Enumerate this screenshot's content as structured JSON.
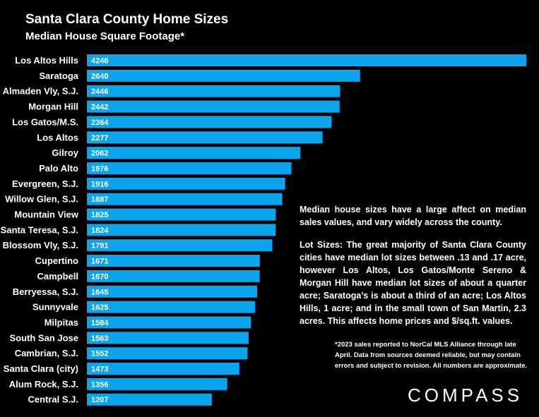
{
  "chart_data": {
    "type": "bar",
    "orientation": "horizontal",
    "title": "Santa Clara County Home Sizes",
    "subtitle": "Median House Square Footage*",
    "categories": [
      "Los Altos Hills",
      "Saratoga",
      "Almaden Vly, S.J.",
      "Morgan Hill",
      "Los Gatos/M.S.",
      "Los Altos",
      "Gilroy",
      "Palo Alto",
      "Evergreen, S.J.",
      "Willow Glen, S.J.",
      "Mountain View",
      "Santa Teresa, S.J.",
      "Blossom Vly, S.J.",
      "Cupertino",
      "Campbell",
      "Berryessa, S.J.",
      "Sunnyvale",
      "Milpitas",
      "South San Jose",
      "Cambrian, S.J.",
      "Santa Clara (city)",
      "Alum Rock, S.J.",
      "Central S.J."
    ],
    "values": [
      4246,
      2640,
      2446,
      2442,
      2364,
      2277,
      2062,
      1976,
      1916,
      1887,
      1825,
      1824,
      1791,
      1671,
      1670,
      1645,
      1625,
      1584,
      1563,
      1552,
      1473,
      1356,
      1207
    ],
    "xlim": [
      0,
      4246
    ],
    "grid": false,
    "bar_color": "#0AA5EC"
  },
  "notes": [
    "Median house sizes have a large affect on median sales values, and vary widely across the county.",
    "Lot Sizes: The great majority of Santa Clara County cities have median lot sizes between .13 and .17 acre, however Los Altos, Los Gatos/Monte Sereno & Morgan Hill have median lot sizes of about a quarter acre; Saratoga’s is about a third of an acre; Los Altos Hills, 1 acre; and in the small town of San Martin, 2.3 acres. This affects home prices and $/sq.ft. values."
  ],
  "footnote": "*2023 sales reported to NorCal MLS Alliance through late April. Data from sources deemed reliable, but may contain errors and subject to revision. All numbers are approximate.",
  "logo": "COMPASS"
}
